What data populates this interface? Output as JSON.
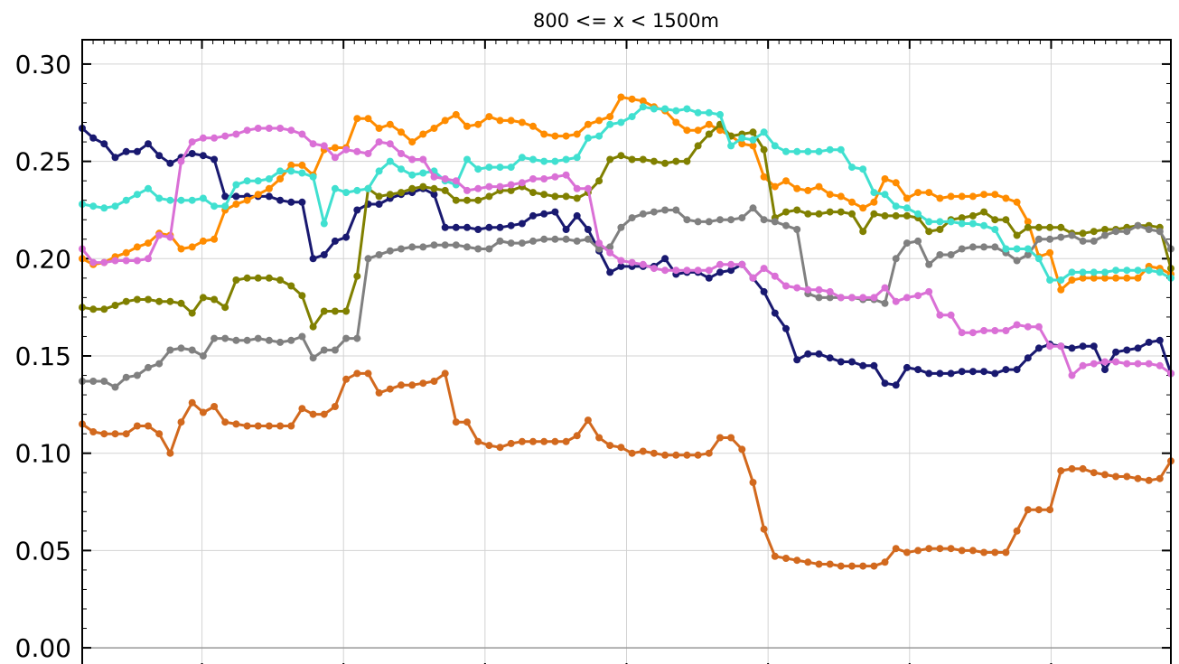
{
  "chart_data": {
    "type": "line",
    "title": "800 <= x < 1500m",
    "xlabel": "",
    "ylabel": "",
    "xlim": [
      0,
      100
    ],
    "ylim": [
      -0.0125,
      0.3125
    ],
    "yticks": [
      0.0,
      0.05,
      0.1,
      0.15,
      0.2,
      0.25,
      0.3
    ],
    "ytick_labels": [
      "0.00",
      "0.05",
      "0.10",
      "0.15",
      "0.20",
      "0.25",
      "0.30"
    ],
    "xgrid": [
      11,
      24,
      37,
      50,
      63,
      76,
      89
    ],
    "grid": true,
    "markers": true,
    "series": [
      {
        "color": "#191970",
        "values": [
          0.267,
          0.262,
          0.259,
          0.252,
          0.255,
          0.255,
          0.259,
          0.253,
          0.249,
          0.252,
          0.254,
          0.253,
          0.251,
          0.232,
          0.232,
          0.232,
          0.232,
          0.232,
          0.23,
          0.229,
          0.229,
          0.2,
          0.202,
          0.209,
          0.211,
          0.225,
          0.228,
          0.228,
          0.231,
          0.233,
          0.234,
          0.236,
          0.233,
          0.216,
          0.216,
          0.216,
          0.215,
          0.216,
          0.216,
          0.217,
          0.218,
          0.222,
          0.223,
          0.224,
          0.215,
          0.222,
          0.215,
          0.204,
          0.193,
          0.196,
          0.196,
          0.196,
          0.196,
          0.2,
          0.192,
          0.193,
          0.193,
          0.19,
          0.193,
          0.194,
          0.197,
          0.19,
          0.183,
          0.172,
          0.164,
          0.148,
          0.151,
          0.151,
          0.149,
          0.147,
          0.147,
          0.145,
          0.145,
          0.136,
          0.135,
          0.144,
          0.143,
          0.141,
          0.141,
          0.141,
          0.142,
          0.142,
          0.142,
          0.141,
          0.143,
          0.143,
          0.149,
          0.154,
          0.156,
          0.155,
          0.154,
          0.155,
          0.155,
          0.143,
          0.152,
          0.153,
          0.154,
          0.157,
          0.158,
          0.141
        ]
      },
      {
        "color": "#ff8c00",
        "values": [
          0.2,
          0.197,
          0.198,
          0.201,
          0.203,
          0.206,
          0.208,
          0.213,
          0.212,
          0.205,
          0.206,
          0.209,
          0.21,
          0.225,
          0.228,
          0.23,
          0.233,
          0.236,
          0.241,
          0.248,
          0.248,
          0.243,
          0.256,
          0.257,
          0.257,
          0.272,
          0.272,
          0.267,
          0.269,
          0.265,
          0.26,
          0.264,
          0.267,
          0.271,
          0.274,
          0.268,
          0.269,
          0.273,
          0.271,
          0.271,
          0.27,
          0.268,
          0.264,
          0.263,
          0.263,
          0.264,
          0.269,
          0.271,
          0.273,
          0.283,
          0.282,
          0.281,
          0.278,
          0.276,
          0.27,
          0.266,
          0.266,
          0.269,
          0.266,
          0.263,
          0.259,
          0.258,
          0.242,
          0.237,
          0.24,
          0.236,
          0.235,
          0.237,
          0.233,
          0.232,
          0.229,
          0.226,
          0.229,
          0.241,
          0.239,
          0.231,
          0.234,
          0.234,
          0.231,
          0.232,
          0.232,
          0.232,
          0.233,
          0.233,
          0.231,
          0.229,
          0.219,
          0.201,
          0.203,
          0.184,
          0.189,
          0.19,
          0.19,
          0.19,
          0.19,
          0.19,
          0.19,
          0.196,
          0.195,
          0.192
        ]
      },
      {
        "color": "#808000",
        "values": [
          0.175,
          0.174,
          0.174,
          0.176,
          0.178,
          0.179,
          0.179,
          0.178,
          0.178,
          0.177,
          0.172,
          0.18,
          0.179,
          0.175,
          0.189,
          0.19,
          0.19,
          0.19,
          0.189,
          0.186,
          0.181,
          0.165,
          0.173,
          0.173,
          0.173,
          0.191,
          0.236,
          0.232,
          0.233,
          0.234,
          0.236,
          0.237,
          0.236,
          0.235,
          0.23,
          0.23,
          0.23,
          0.232,
          0.235,
          0.235,
          0.237,
          0.234,
          0.233,
          0.232,
          0.232,
          0.231,
          0.234,
          0.24,
          0.251,
          0.253,
          0.251,
          0.251,
          0.25,
          0.249,
          0.25,
          0.25,
          0.258,
          0.264,
          0.269,
          0.263,
          0.264,
          0.265,
          0.256,
          0.221,
          0.224,
          0.225,
          0.223,
          0.223,
          0.224,
          0.224,
          0.223,
          0.214,
          0.223,
          0.222,
          0.222,
          0.222,
          0.221,
          0.214,
          0.215,
          0.22,
          0.221,
          0.222,
          0.224,
          0.22,
          0.22,
          0.212,
          0.216,
          0.216,
          0.216,
          0.216,
          0.213,
          0.213,
          0.214,
          0.215,
          0.215,
          0.216,
          0.217,
          0.217,
          0.216,
          0.195
        ]
      },
      {
        "color": "#808080",
        "values": [
          0.137,
          0.137,
          0.137,
          0.134,
          0.139,
          0.14,
          0.144,
          0.146,
          0.153,
          0.154,
          0.153,
          0.15,
          0.159,
          0.159,
          0.158,
          0.158,
          0.159,
          0.158,
          0.157,
          0.158,
          0.16,
          0.149,
          0.153,
          0.153,
          0.159,
          0.159,
          0.2,
          0.202,
          0.204,
          0.205,
          0.206,
          0.206,
          0.207,
          0.207,
          0.207,
          0.206,
          0.205,
          0.205,
          0.209,
          0.208,
          0.208,
          0.209,
          0.21,
          0.21,
          0.21,
          0.209,
          0.21,
          0.205,
          0.206,
          0.216,
          0.221,
          0.223,
          0.224,
          0.225,
          0.225,
          0.22,
          0.219,
          0.219,
          0.22,
          0.22,
          0.221,
          0.226,
          0.22,
          0.219,
          0.217,
          0.215,
          0.182,
          0.18,
          0.18,
          0.18,
          0.18,
          0.179,
          0.179,
          0.177,
          0.2,
          0.208,
          0.209,
          0.197,
          0.202,
          0.202,
          0.205,
          0.206,
          0.206,
          0.206,
          0.203,
          0.199,
          0.202,
          0.21,
          0.21,
          0.211,
          0.212,
          0.209,
          0.209,
          0.212,
          0.214,
          0.214,
          0.217,
          0.215,
          0.214,
          0.205
        ]
      },
      {
        "color": "#40e0d0",
        "values": [
          0.228,
          0.227,
          0.226,
          0.227,
          0.23,
          0.233,
          0.236,
          0.231,
          0.23,
          0.23,
          0.23,
          0.231,
          0.227,
          0.227,
          0.238,
          0.24,
          0.24,
          0.241,
          0.245,
          0.245,
          0.244,
          0.242,
          0.218,
          0.236,
          0.234,
          0.235,
          0.236,
          0.245,
          0.25,
          0.246,
          0.243,
          0.244,
          0.245,
          0.24,
          0.238,
          0.251,
          0.246,
          0.247,
          0.247,
          0.247,
          0.252,
          0.251,
          0.25,
          0.25,
          0.251,
          0.252,
          0.262,
          0.263,
          0.269,
          0.27,
          0.273,
          0.278,
          0.277,
          0.277,
          0.276,
          0.277,
          0.275,
          0.275,
          0.274,
          0.258,
          0.262,
          0.261,
          0.265,
          0.258,
          0.255,
          0.255,
          0.255,
          0.255,
          0.256,
          0.256,
          0.247,
          0.246,
          0.234,
          0.233,
          0.227,
          0.226,
          0.223,
          0.219,
          0.219,
          0.219,
          0.218,
          0.218,
          0.217,
          0.215,
          0.205,
          0.205,
          0.205,
          0.2,
          0.189,
          0.189,
          0.193,
          0.193,
          0.193,
          0.193,
          0.194,
          0.194,
          0.194,
          0.194,
          0.193,
          0.19
        ]
      },
      {
        "color": "#da70d6",
        "values": [
          0.205,
          0.198,
          0.198,
          0.199,
          0.199,
          0.199,
          0.2,
          0.212,
          0.211,
          0.25,
          0.26,
          0.262,
          0.262,
          0.263,
          0.264,
          0.266,
          0.267,
          0.267,
          0.267,
          0.266,
          0.264,
          0.259,
          0.258,
          0.252,
          0.256,
          0.255,
          0.254,
          0.26,
          0.259,
          0.254,
          0.251,
          0.251,
          0.242,
          0.241,
          0.24,
          0.235,
          0.236,
          0.237,
          0.237,
          0.238,
          0.239,
          0.241,
          0.241,
          0.242,
          0.243,
          0.236,
          0.236,
          0.208,
          0.203,
          0.199,
          0.198,
          0.197,
          0.195,
          0.194,
          0.194,
          0.194,
          0.194,
          0.194,
          0.197,
          0.197,
          0.197,
          0.19,
          0.195,
          0.191,
          0.186,
          0.185,
          0.184,
          0.184,
          0.183,
          0.18,
          0.18,
          0.18,
          0.18,
          0.185,
          0.178,
          0.18,
          0.181,
          0.183,
          0.171,
          0.171,
          0.162,
          0.162,
          0.163,
          0.163,
          0.163,
          0.166,
          0.165,
          0.165,
          0.155,
          0.155,
          0.14,
          0.145,
          0.146,
          0.147,
          0.147,
          0.146,
          0.146,
          0.146,
          0.145,
          0.141
        ]
      },
      {
        "color": "#d2691e",
        "values": [
          0.115,
          0.111,
          0.11,
          0.11,
          0.11,
          0.114,
          0.114,
          0.11,
          0.1,
          0.116,
          0.126,
          0.121,
          0.124,
          0.116,
          0.115,
          0.114,
          0.114,
          0.114,
          0.114,
          0.114,
          0.123,
          0.12,
          0.12,
          0.124,
          0.138,
          0.141,
          0.141,
          0.131,
          0.133,
          0.135,
          0.135,
          0.136,
          0.137,
          0.141,
          0.116,
          0.116,
          0.106,
          0.104,
          0.103,
          0.105,
          0.106,
          0.106,
          0.106,
          0.106,
          0.106,
          0.109,
          0.117,
          0.108,
          0.104,
          0.103,
          0.1,
          0.101,
          0.1,
          0.099,
          0.099,
          0.099,
          0.099,
          0.1,
          0.108,
          0.108,
          0.102,
          0.085,
          0.061,
          0.047,
          0.046,
          0.045,
          0.044,
          0.043,
          0.043,
          0.042,
          0.042,
          0.042,
          0.042,
          0.044,
          0.051,
          0.049,
          0.05,
          0.051,
          0.051,
          0.051,
          0.05,
          0.05,
          0.049,
          0.049,
          0.049,
          0.06,
          0.071,
          0.071,
          0.071,
          0.091,
          0.092,
          0.092,
          0.09,
          0.089,
          0.088,
          0.088,
          0.087,
          0.086,
          0.087,
          0.096
        ]
      }
    ]
  }
}
